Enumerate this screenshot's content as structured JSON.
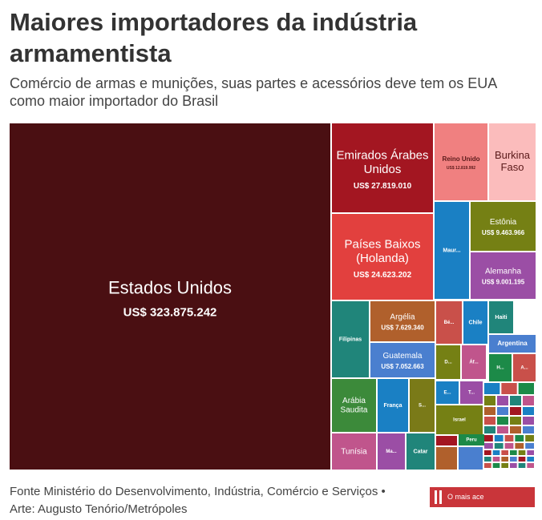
{
  "header": {
    "title": "Maiores importadores da indústria armamentista",
    "subtitle": "Comércio de armas e munições, suas partes e acessórios deve tem os EUA como maior importador do Brasil"
  },
  "footer": {
    "source": "Fonte Ministério do Desenvolvimento, Indústria, Comércio e Serviços • Arte: Augusto Tenório/Metrópoles",
    "brand_label": "O mais ace"
  },
  "chart_data": {
    "type": "treemap",
    "title": "Maiores importadores da indústria armamentista",
    "unit": "US$",
    "series": [
      {
        "name": "Estados Unidos",
        "label": "Estados Unidos",
        "value_label": "US$ 323.875.242",
        "value": 323875242,
        "color": "#4a0f12"
      },
      {
        "name": "Emirados Árabes Unidos",
        "label": "Emirados Árabes Unidos",
        "value_label": "US$ 27.819.010",
        "value": 27819010,
        "color": "#a31621"
      },
      {
        "name": "Países Baixos (Holanda)",
        "label": "Países Baixos (Holanda)",
        "value_label": "US$ 24.623.202",
        "value": 24623202,
        "color": "#e2403e"
      },
      {
        "name": "Reino Unido",
        "label": "Reino Unido",
        "value_label": "US$ 12.819.992",
        "value": 12819992,
        "color": "#f08080"
      },
      {
        "name": "Burkina Faso",
        "label": "Burkina Faso",
        "value_label": "",
        "value": null,
        "color": "#fbbcbc"
      },
      {
        "name": "Mauritânia",
        "label": "Maur...",
        "value_label": "",
        "value": null,
        "color": "#1a80c4"
      },
      {
        "name": "Estônia",
        "label": "Estônia",
        "value_label": "US$ 9.463.966",
        "value": 9463966,
        "color": "#758014"
      },
      {
        "name": "Alemanha",
        "label": "Alemanha",
        "value_label": "US$ 9.001.195",
        "value": 9001195,
        "color": "#9b4ea5"
      },
      {
        "name": "Filipinas",
        "label": "Filipinas",
        "value_label": "",
        "value": null,
        "color": "#20857a"
      },
      {
        "name": "Argélia",
        "label": "Argélia",
        "value_label": "US$ 7.629.340",
        "value": 7629340,
        "color": "#b0602c"
      },
      {
        "name": "Guatemala",
        "label": "Guatemala",
        "value_label": "US$ 7.052.663",
        "value": 7052663,
        "color": "#4a7fcf"
      },
      {
        "name": "Bé...",
        "label": "Bé...",
        "value_label": "",
        "value": null,
        "color": "#c9504a"
      },
      {
        "name": "Chile",
        "label": "Chile",
        "value_label": "",
        "value": null,
        "color": "#1a80c4"
      },
      {
        "name": "Haiti",
        "label": "Haiti",
        "value_label": "",
        "value": null,
        "color": "#20857a"
      },
      {
        "name": "Argentina",
        "label": "Argentina",
        "value_label": "",
        "value": null,
        "color": "#4a7fcf"
      },
      {
        "name": "D...",
        "label": "D...",
        "value_label": "",
        "value": null,
        "color": "#758014"
      },
      {
        "name": "Áf...",
        "label": "Áf...",
        "value_label": "",
        "value": null,
        "color": "#c0558c"
      },
      {
        "name": "H...",
        "label": "H...",
        "value_label": "",
        "value": null,
        "color": "#1c8a48"
      },
      {
        "name": "A...",
        "label": "A...",
        "value_label": "",
        "value": null,
        "color": "#c9504a"
      },
      {
        "name": "Arábia Saudita",
        "label": "Arábia Saudita",
        "value_label": "",
        "value": null,
        "color": "#3c8a3a"
      },
      {
        "name": "França",
        "label": "França",
        "value_label": "",
        "value": null,
        "color": "#1a80c4"
      },
      {
        "name": "S...",
        "label": "S...",
        "value_label": "",
        "value": null,
        "color": "#7a7a18"
      },
      {
        "name": "Tunísia",
        "label": "Tunísia",
        "value_label": "",
        "value": null,
        "color": "#c0558c"
      },
      {
        "name": "Ma...",
        "label": "Ma...",
        "value_label": "",
        "value": null,
        "color": "#9b4ea5"
      },
      {
        "name": "Catar",
        "label": "Catar",
        "value_label": "",
        "value": null,
        "color": "#20857a"
      },
      {
        "name": "E...",
        "label": "E...",
        "value_label": "",
        "value": null,
        "color": "#1a80c4"
      },
      {
        "name": "T...",
        "label": "T...",
        "value_label": "",
        "value": null,
        "color": "#9b4ea5"
      },
      {
        "name": "Israel",
        "label": "Israel",
        "value_label": "",
        "value": null,
        "color": "#758014"
      },
      {
        "name": "Peru",
        "label": "Peru",
        "value_label": "",
        "value": null,
        "color": "#1c8a48"
      }
    ]
  }
}
